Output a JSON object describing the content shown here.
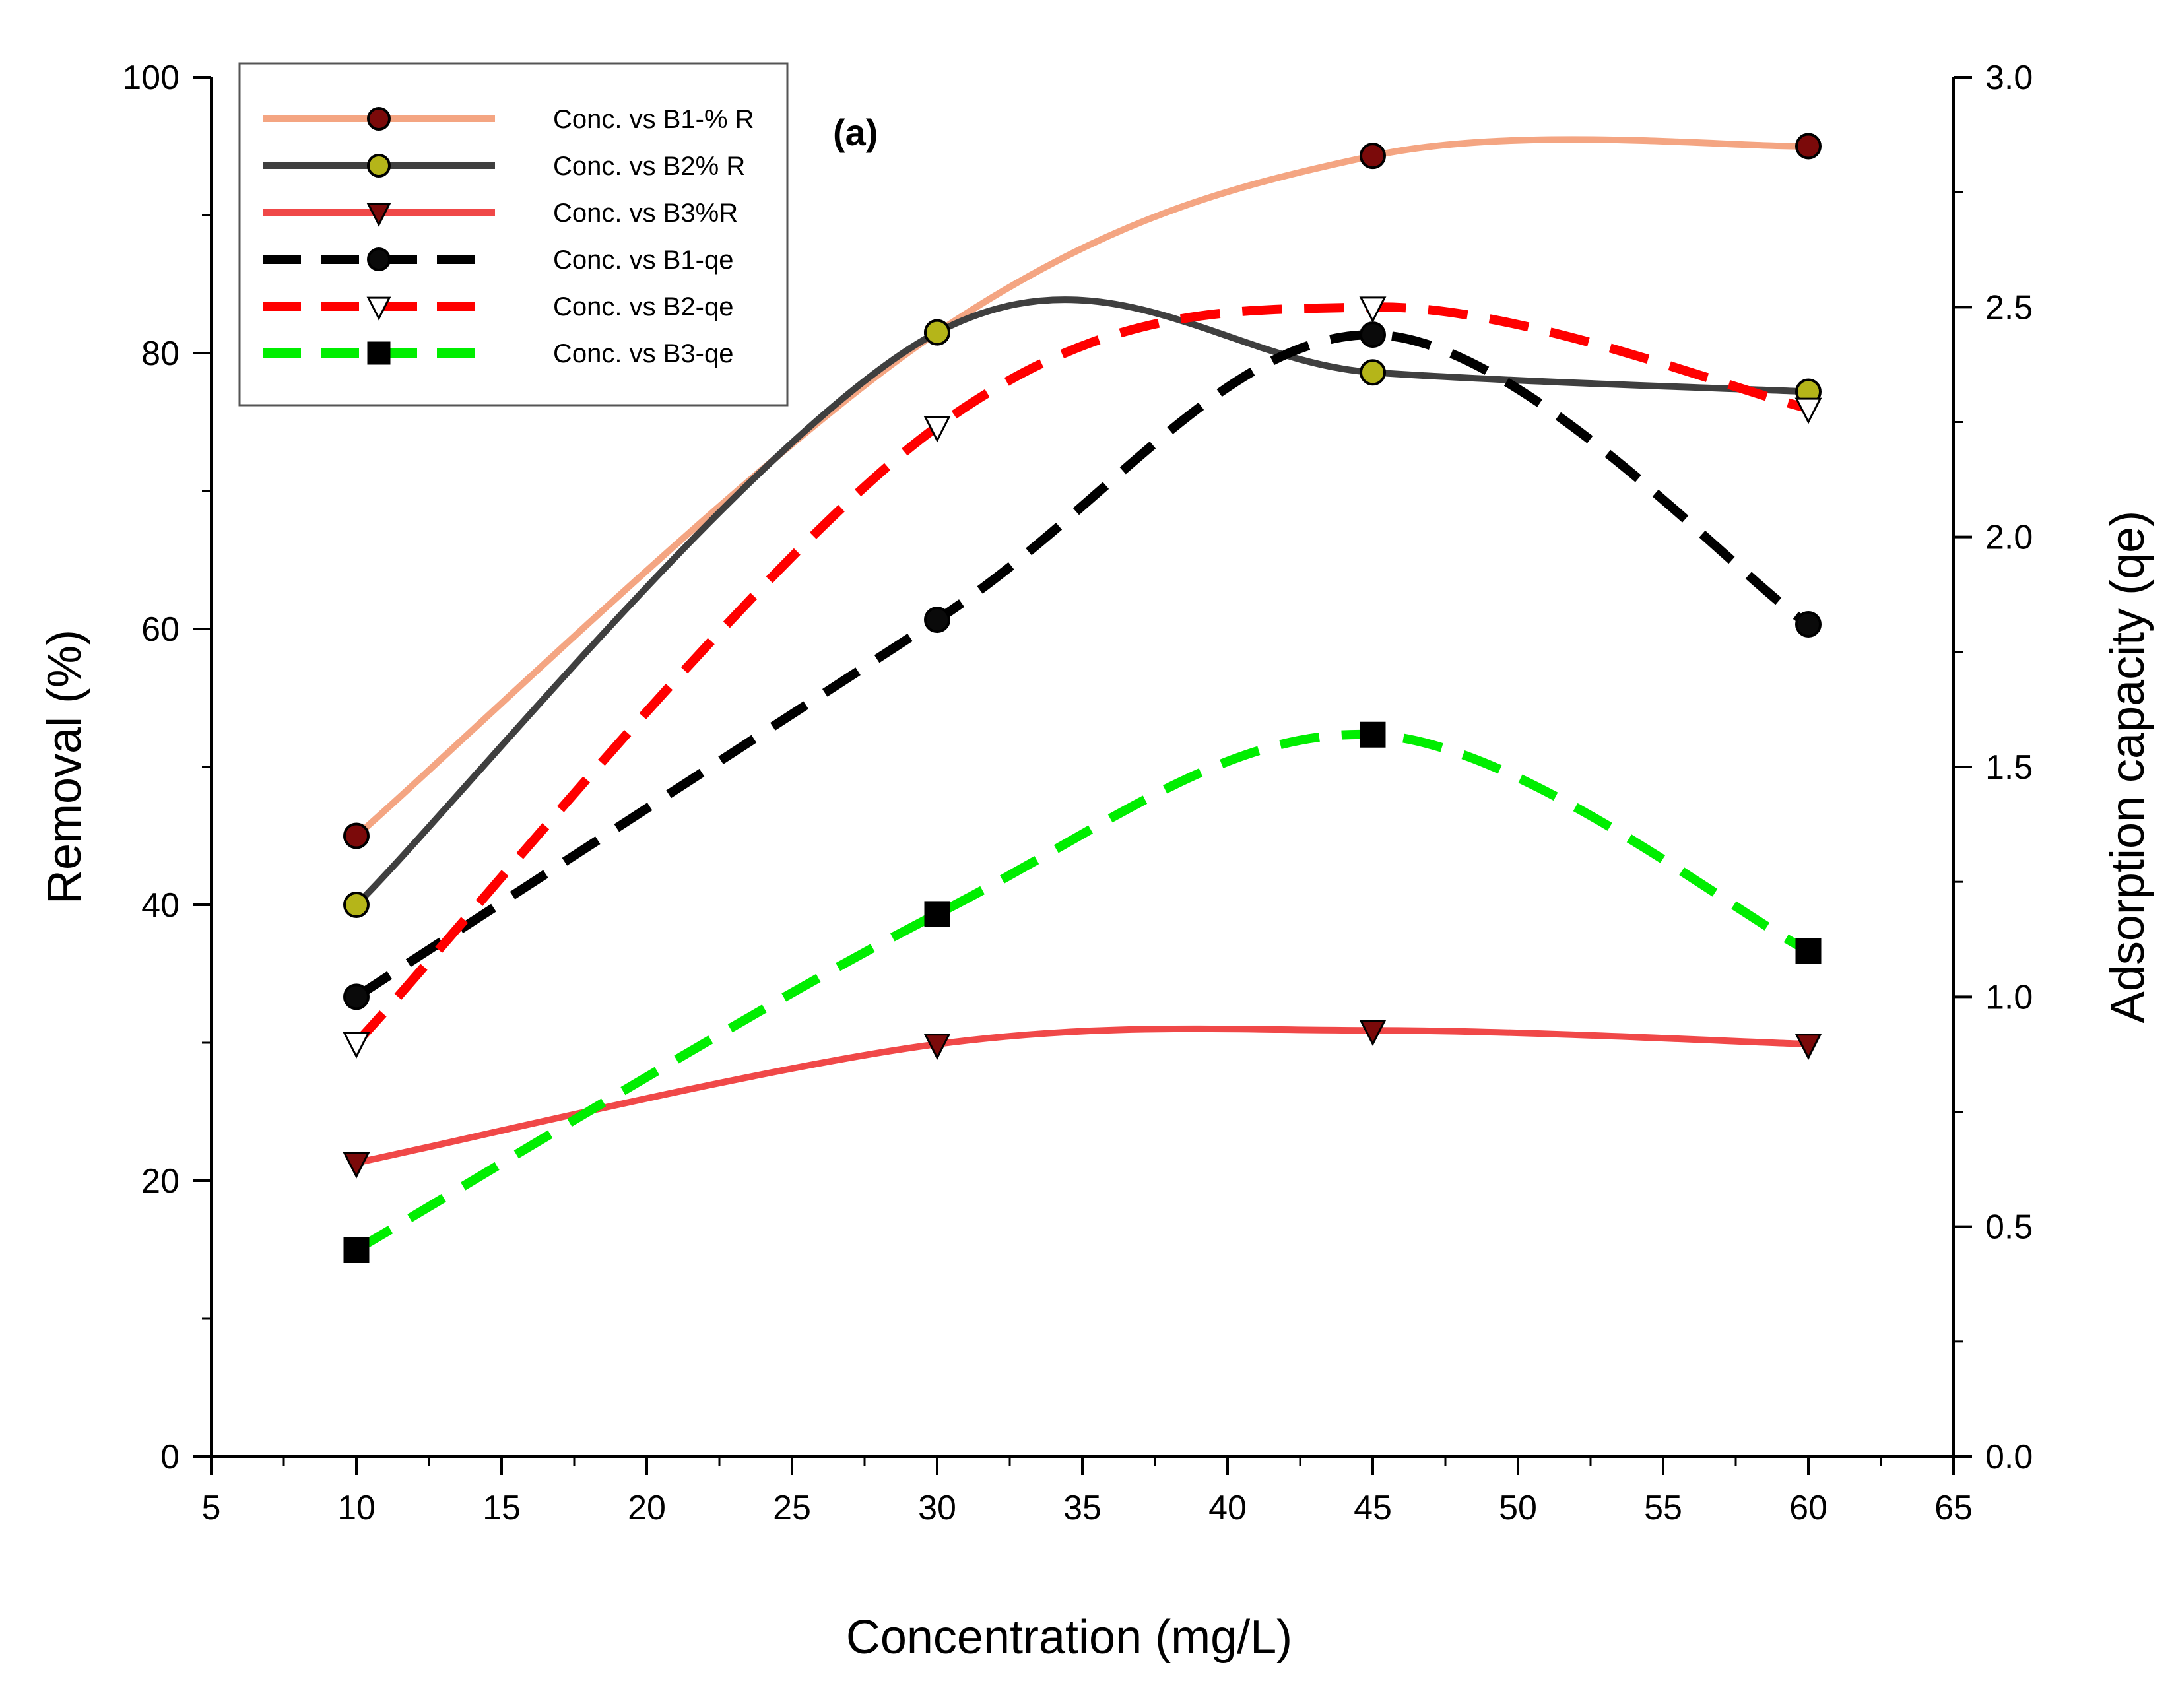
{
  "chart_data": {
    "type": "line",
    "panel_label": "(a)",
    "xlabel": "Concentration (mg/L)",
    "ylabel_left": "Removal (%)",
    "ylabel_right": "Adsorption capacity (qe)",
    "xlim": [
      5,
      65
    ],
    "xticks": [
      "5",
      "10",
      "15",
      "20",
      "25",
      "30",
      "35",
      "40",
      "45",
      "50",
      "55",
      "60",
      "65"
    ],
    "ylim_left": [
      0,
      100
    ],
    "yticks_left": [
      "0",
      "20",
      "40",
      "60",
      "80",
      "100"
    ],
    "ylim_right": [
      0,
      3
    ],
    "yticks_right": [
      "0.0",
      "0.5",
      "1.0",
      "1.5",
      "2.0",
      "2.5",
      "3.0"
    ],
    "x": [
      10,
      30,
      45,
      60
    ],
    "legend_position": "top-left",
    "series": [
      {
        "name": "Conc. vs B1-% R",
        "axis": "left",
        "values": [
          45,
          81.5,
          94.3,
          95
        ],
        "color": "#F4A582",
        "dash": "solid",
        "marker": "circle",
        "marker_color": "#7B0A0A"
      },
      {
        "name": "Conc. vs B2% R",
        "axis": "left",
        "values": [
          40,
          81.5,
          78.6,
          77.2
        ],
        "color": "#3F3F3F",
        "dash": "solid",
        "marker": "circle",
        "marker_color": "#B5B519"
      },
      {
        "name": "Conc. vs B3%R",
        "axis": "left",
        "values": [
          21.3,
          29.9,
          30.9,
          29.9
        ],
        "color": "#F04848",
        "dash": "solid",
        "marker": "triangle-down",
        "marker_color": "#7B0A0A"
      },
      {
        "name": "Conc. vs B1-qe",
        "axis": "right",
        "values": [
          1.0,
          1.82,
          2.44,
          1.81
        ],
        "color": "#000000",
        "dash": "dashed",
        "marker": "circle",
        "marker_color": "#0A0A0A"
      },
      {
        "name": "Conc. vs B2-qe",
        "axis": "right",
        "values": [
          0.9,
          2.24,
          2.5,
          2.28
        ],
        "color": "#FF0000",
        "dash": "dashed",
        "marker": "triangle-down-open",
        "marker_color": "#FFFFFF"
      },
      {
        "name": "Conc. vs B3-qe",
        "axis": "right",
        "values": [
          0.45,
          1.18,
          1.57,
          1.1
        ],
        "color": "#00EE00",
        "dash": "dashed",
        "marker": "square",
        "marker_color": "#000000"
      }
    ]
  }
}
